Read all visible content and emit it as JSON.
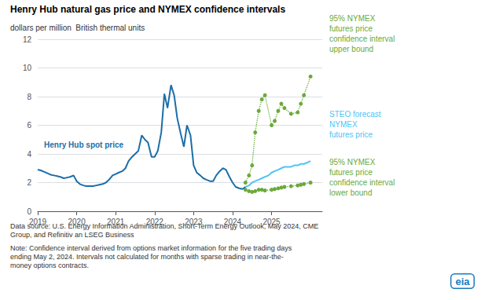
{
  "chart_data": {
    "type": "line",
    "title": "Henry Hub natural gas price and NYMEX confidence intervals",
    "subtitle": "dollars per million  British thermal units",
    "annotations": [
      "Data source: U.S. Energy Information Administration, Short-Term Energy Outlook, May 2024, CME\nGroup, and Refinitiv an LSEG Business",
      "Note: Confidence interval derived from options market information for the five trading days\nending May 2, 2024. Intervals not calculated for months with sparse trading in near-the-\nmoney options contracts.",
      "eia"
    ],
    "xlim": [
      2019.0,
      2026.3
    ],
    "xticks": [
      2019,
      2020,
      2021,
      2022,
      2023,
      2024,
      2025
    ],
    "ylim": [
      0,
      12
    ],
    "yticks": [
      0,
      2,
      4,
      6,
      8,
      10,
      12
    ],
    "grid": true,
    "series": [
      {
        "name": "Henry Hub spot price",
        "color": "#1b6ea8",
        "line_style": "solid",
        "x": [
          2019.0,
          2019.08,
          2019.17,
          2019.25,
          2019.33,
          2019.42,
          2019.5,
          2019.58,
          2019.67,
          2019.75,
          2019.83,
          2019.92,
          2020.0,
          2020.08,
          2020.17,
          2020.25,
          2020.33,
          2020.42,
          2020.5,
          2020.58,
          2020.67,
          2020.75,
          2020.83,
          2020.92,
          2021.0,
          2021.08,
          2021.17,
          2021.25,
          2021.33,
          2021.42,
          2021.5,
          2021.58,
          2021.67,
          2021.75,
          2021.83,
          2021.92,
          2022.0,
          2022.08,
          2022.17,
          2022.25,
          2022.33,
          2022.42,
          2022.5,
          2022.58,
          2022.67,
          2022.75,
          2022.83,
          2022.92,
          2023.0,
          2023.08,
          2023.17,
          2023.25,
          2023.33,
          2023.42,
          2023.5,
          2023.58,
          2023.67,
          2023.75,
          2023.83,
          2023.92,
          2024.0,
          2024.08,
          2024.17,
          2024.25,
          2024.33
        ],
        "values": [
          2.9,
          2.85,
          2.75,
          2.65,
          2.55,
          2.5,
          2.45,
          2.4,
          2.3,
          2.35,
          2.4,
          2.5,
          2.1,
          1.9,
          1.8,
          1.75,
          1.75,
          1.75,
          1.8,
          1.85,
          1.9,
          2.0,
          2.2,
          2.5,
          2.6,
          2.7,
          2.8,
          3.0,
          3.5,
          3.8,
          4.0,
          4.2,
          5.3,
          5.0,
          4.8,
          3.8,
          3.8,
          4.2,
          5.5,
          8.2,
          7.2,
          8.8,
          8.1,
          6.5,
          5.4,
          4.5,
          6.0,
          5.3,
          3.2,
          2.7,
          2.5,
          2.3,
          2.2,
          2.1,
          2.1,
          2.5,
          2.8,
          3.0,
          2.9,
          2.4,
          2.0,
          1.7,
          1.6,
          1.55,
          1.7
        ]
      },
      {
        "name": "STEO forecast\nNYMEX\nfutures price",
        "color": "#4fc3f7",
        "line_style": "solid",
        "x": [
          2024.33,
          2024.42,
          2024.5,
          2024.58,
          2024.67,
          2024.75,
          2024.83,
          2024.92,
          2025.0,
          2025.08,
          2025.17,
          2025.25,
          2025.33,
          2025.42,
          2025.5,
          2025.58,
          2025.67,
          2025.75,
          2025.83,
          2025.92,
          2026.0
        ],
        "values": [
          1.7,
          1.8,
          2.0,
          2.1,
          2.2,
          2.3,
          2.4,
          2.5,
          2.7,
          2.8,
          2.9,
          3.0,
          3.1,
          3.1,
          3.1,
          3.2,
          3.2,
          3.3,
          3.3,
          3.4,
          3.5
        ]
      },
      {
        "name": "95% NYMEX\nfutures price\nconfidence interval\nupper bound",
        "color": "#6aaa3a",
        "line_style": "dotted",
        "marker": "circle",
        "x": [
          2024.33,
          2024.42,
          2024.5,
          2024.58,
          2024.67,
          2024.75,
          2024.83,
          2025.0,
          2025.08,
          2025.17,
          2025.25,
          2025.33,
          2025.5,
          2025.67,
          2025.75,
          2025.83,
          2026.0
        ],
        "values": [
          2.0,
          2.5,
          3.2,
          5.5,
          7.0,
          7.8,
          8.1,
          6.0,
          6.3,
          7.0,
          7.5,
          7.2,
          6.8,
          6.9,
          7.5,
          8.1,
          9.4
        ]
      },
      {
        "name": "95% NYMEX\nfutures price\nconfidence interval\nlower bound",
        "color": "#6aaa3a",
        "line_style": "dotted",
        "marker": "circle",
        "x": [
          2024.33,
          2024.42,
          2024.5,
          2024.58,
          2024.67,
          2024.75,
          2024.83,
          2025.0,
          2025.08,
          2025.17,
          2025.25,
          2025.33,
          2025.5,
          2025.67,
          2025.75,
          2025.83,
          2026.0
        ],
        "values": [
          1.5,
          1.4,
          1.35,
          1.4,
          1.5,
          1.5,
          1.45,
          1.5,
          1.55,
          1.6,
          1.65,
          1.7,
          1.75,
          1.8,
          1.85,
          1.9,
          2.0
        ]
      }
    ]
  }
}
